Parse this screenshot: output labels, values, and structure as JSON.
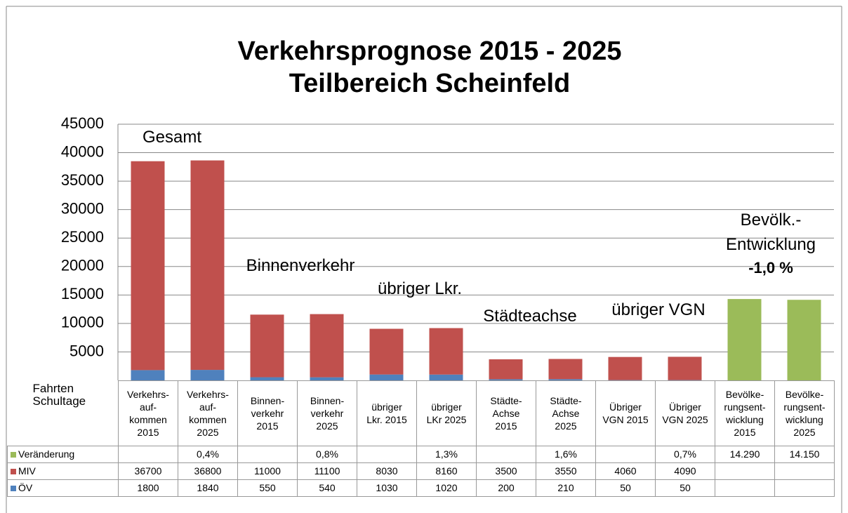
{
  "chart_data": {
    "type": "bar",
    "stacked": true,
    "title": "Verkehrsprognose 2015 - 2025\nTeilbereich Scheinfeld",
    "table_label": "Fahrten\nSchultage",
    "categories": [
      "Verkehrs-\nauf-\nkommen\n2015",
      "Verkehrs-\nauf-\nkommen\n2025",
      "Binnen-\nverkehr\n2015",
      "Binnen-\nverkehr\n2025",
      "übriger\nLkr. 2015",
      "übriger\nLKr 2025",
      "Städte-\nAchse\n2015",
      "Städte-\nAchse\n2025",
      "Übriger\nVGN 2015",
      "Übriger\nVGN 2025",
      "Bevölke-\nrungsent-\nwicklung\n2015",
      "Bevölke-\nrungsent-\nwicklung\n2025"
    ],
    "series": [
      {
        "name": "Veränderung",
        "color": "#9bbb59",
        "values": [
          null,
          0.4,
          null,
          0.8,
          null,
          1.3,
          null,
          1.6,
          null,
          0.7,
          14290,
          14150
        ],
        "value_labels": [
          null,
          "0,4%",
          null,
          "0,8%",
          null,
          "1,3%",
          null,
          "1,6%",
          null,
          "0,7%",
          "14.290",
          "14.150"
        ]
      },
      {
        "name": "MIV",
        "color": "#c0504d",
        "values": [
          36700,
          36800,
          11000,
          11100,
          8030,
          8160,
          3500,
          3550,
          4060,
          4090,
          null,
          null
        ]
      },
      {
        "name": "ÖV",
        "color": "#4f81bd",
        "values": [
          1800,
          1840,
          550,
          540,
          1030,
          1020,
          200,
          210,
          50,
          50,
          null,
          null
        ]
      }
    ],
    "ylim": [
      0,
      45000
    ],
    "yticks": [
      5000,
      10000,
      15000,
      20000,
      25000,
      30000,
      35000,
      40000,
      45000
    ],
    "grid": true,
    "annotations": [
      {
        "text": "Gesamt"
      },
      {
        "text": "Binnenverkehr"
      },
      {
        "text": "übriger Lkr."
      },
      {
        "text": "Städteachse"
      },
      {
        "text": "übriger VGN"
      },
      {
        "text": "Bevölk.-\nEntwicklung"
      },
      {
        "text": "-1,0 %"
      }
    ]
  }
}
